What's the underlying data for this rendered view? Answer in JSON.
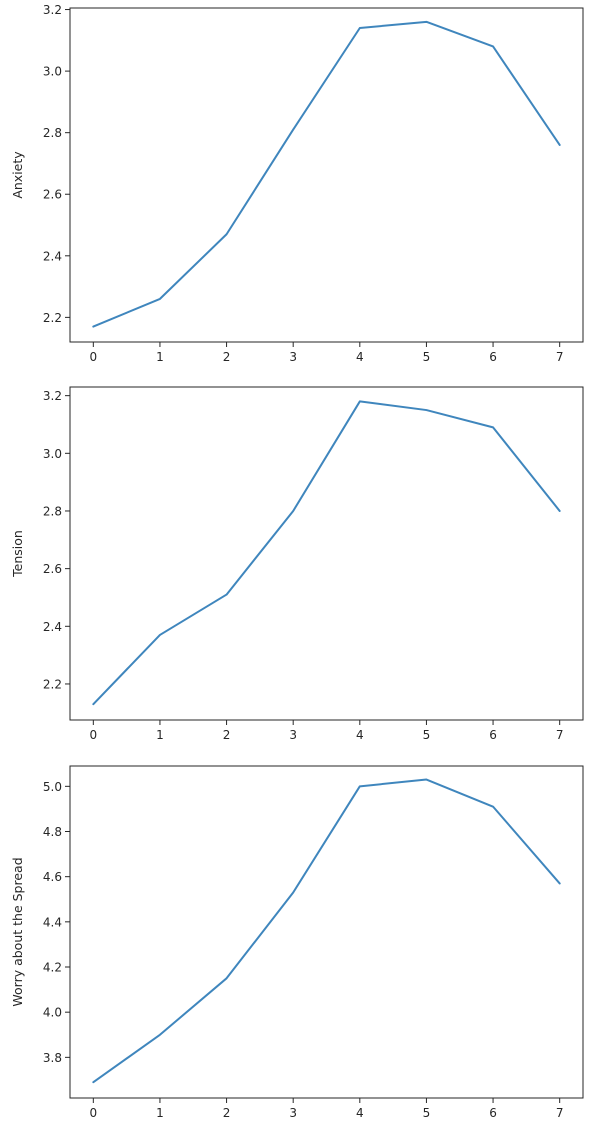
{
  "colors": {
    "series": "#3f86bd",
    "axes": "#262626",
    "background": "#ffffff"
  },
  "chart_data": [
    {
      "type": "line",
      "ylabel": "Anxiety",
      "xlabel": "",
      "x": [
        0,
        1,
        2,
        3,
        4,
        5,
        6,
        7
      ],
      "xticks": [
        0,
        1,
        2,
        3,
        4,
        5,
        6,
        7
      ],
      "xlim": [
        -0.35,
        7.35
      ],
      "ylim": [
        2.12,
        3.205
      ],
      "yticks": [
        2.2,
        2.4,
        2.6,
        2.8,
        3.0,
        3.2
      ],
      "yticklabels": [
        "2.2",
        "2.4",
        "2.6",
        "2.8",
        "3.0",
        "3.2"
      ],
      "series": [
        {
          "values": [
            2.17,
            2.26,
            2.47,
            2.81,
            3.14,
            3.16,
            3.08,
            2.76
          ]
        }
      ],
      "grid": false,
      "legend": "none"
    },
    {
      "type": "line",
      "ylabel": "Tension",
      "xlabel": "",
      "x": [
        0,
        1,
        2,
        3,
        4,
        5,
        6,
        7
      ],
      "xticks": [
        0,
        1,
        2,
        3,
        4,
        5,
        6,
        7
      ],
      "xlim": [
        -0.35,
        7.35
      ],
      "ylim": [
        2.075,
        3.23
      ],
      "yticks": [
        2.2,
        2.4,
        2.6,
        2.8,
        3.0,
        3.2
      ],
      "yticklabels": [
        "2.2",
        "2.4",
        "2.6",
        "2.8",
        "3.0",
        "3.2"
      ],
      "series": [
        {
          "values": [
            2.13,
            2.37,
            2.51,
            2.8,
            3.18,
            3.15,
            3.09,
            2.8
          ]
        }
      ],
      "grid": false,
      "legend": "none"
    },
    {
      "type": "line",
      "ylabel": "Worry about the Spread",
      "xlabel": "",
      "x": [
        0,
        1,
        2,
        3,
        4,
        5,
        6,
        7
      ],
      "xticks": [
        0,
        1,
        2,
        3,
        4,
        5,
        6,
        7
      ],
      "xlim": [
        -0.35,
        7.35
      ],
      "ylim": [
        3.62,
        5.09
      ],
      "yticks": [
        3.8,
        4.0,
        4.2,
        4.4,
        4.6,
        4.8,
        5.0
      ],
      "yticklabels": [
        "3.8",
        "4.0",
        "4.2",
        "4.4",
        "4.6",
        "4.8",
        "5.0"
      ],
      "series": [
        {
          "values": [
            3.69,
            3.9,
            4.15,
            4.53,
            5.0,
            5.03,
            4.91,
            4.57
          ]
        }
      ],
      "grid": false,
      "legend": "none"
    }
  ]
}
